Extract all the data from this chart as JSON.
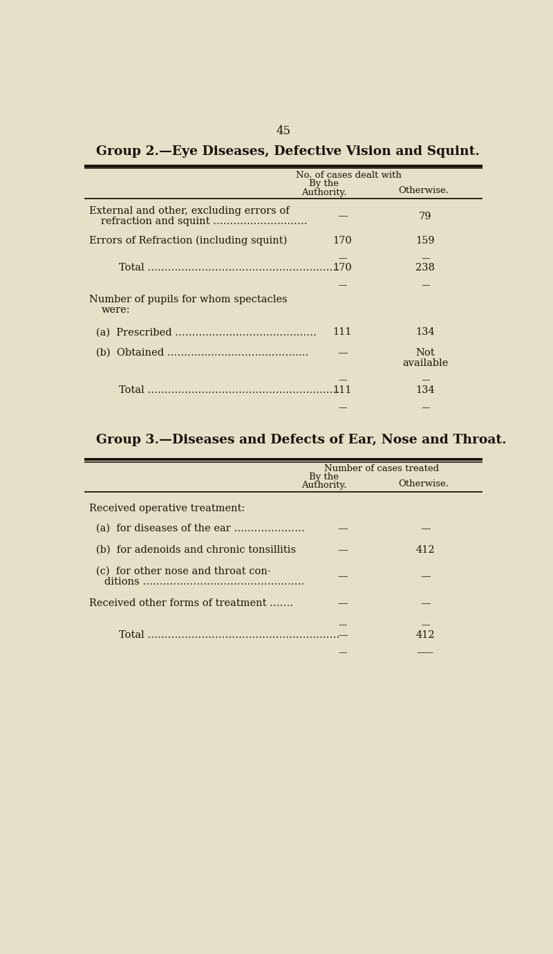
{
  "bg_color": "#e5e0c8",
  "text_color": "#1a1208",
  "page_number": "45",
  "group2_title": "Group 2.—Eye Diseases, Defective Vision and Squint.",
  "group2_header_span": "No. of cases dealt with",
  "group3_title": "Group 3.—Diseases and Defects of Ear, Nose and Throat.",
  "group3_header_span": "Number of cases treated"
}
